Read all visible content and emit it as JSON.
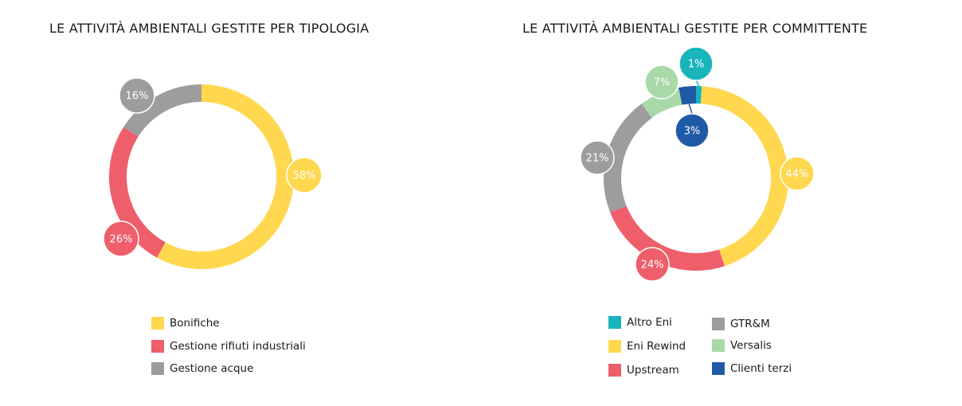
{
  "charts": [
    {
      "title": "LE ATTIVITÀ AMBIENTALI GESTITE PER TIPOLOGIA",
      "legend": [
        "Bonifiche",
        "Gestione rifiuti industriali",
        "Gestione acque"
      ]
    },
    {
      "title": "LE ATTIVITÀ AMBIENTALI GESTITE PER COMMITTENTE",
      "legend": [
        "Altro Eni",
        "GTR&M",
        "Eni Rewind",
        "Versalis",
        "Upstream",
        "Clienti terzi"
      ]
    }
  ],
  "chart_data": [
    {
      "type": "pie",
      "variant": "donut",
      "title": "LE ATTIVITÀ AMBIENTALI GESTITE PER TIPOLOGIA",
      "categories": [
        "Bonifiche",
        "Gestione rifiuti industriali",
        "Gestione acque"
      ],
      "values": [
        58,
        26,
        16
      ],
      "labels": [
        "58%",
        "26%",
        "16%"
      ],
      "colors": [
        "#FFD84F",
        "#EE5E6B",
        "#9D9D9D"
      ],
      "legend_position": "bottom"
    },
    {
      "type": "pie",
      "variant": "donut",
      "title": "LE ATTIVITÀ AMBIENTALI GESTITE PER COMMITTENTE",
      "categories": [
        "Altro Eni",
        "Eni Rewind",
        "Upstream",
        "GTR&M",
        "Versalis",
        "Clienti terzi"
      ],
      "values": [
        1,
        44,
        24,
        21,
        7,
        3
      ],
      "labels": [
        "1%",
        "44%",
        "24%",
        "21%",
        "7%",
        "3%"
      ],
      "colors": [
        "#19B5BD",
        "#FFD84F",
        "#EE5E6B",
        "#9D9D9D",
        "#A9D9A8",
        "#1F5AA6"
      ],
      "legend_position": "bottom"
    }
  ]
}
